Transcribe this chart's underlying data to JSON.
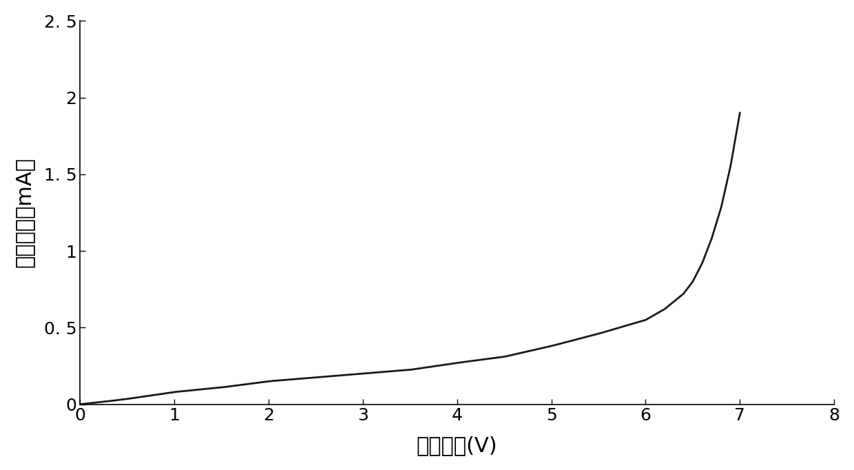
{
  "xlabel": "漏极电压(V)",
  "ylabel": "漏极电流（mA）",
  "xlim": [
    0,
    8
  ],
  "ylim": [
    0,
    2.5
  ],
  "xticks": [
    0,
    1,
    2,
    3,
    4,
    5,
    6,
    7,
    8
  ],
  "yticks": [
    0,
    0.5,
    1.0,
    1.5,
    2.0,
    2.5
  ],
  "ytick_labels": [
    "0",
    "0. 5",
    "1",
    "1. 5",
    "2",
    "2. 5"
  ],
  "xtick_labels": [
    "0",
    "1",
    "2",
    "3",
    "4",
    "5",
    "6",
    "7",
    "8"
  ],
  "line_color": "#1a1a1a",
  "line_width": 2.0,
  "background_color": "#ffffff",
  "font_size_label": 22,
  "font_size_tick": 18,
  "vpts": [
    0,
    0.3,
    0.5,
    1.0,
    1.5,
    2.0,
    2.5,
    3.0,
    3.5,
    4.0,
    4.5,
    5.0,
    5.5,
    6.0,
    6.2,
    6.4,
    6.5,
    6.6,
    6.7,
    6.8,
    6.9,
    7.0
  ],
  "ipts": [
    0,
    0.02,
    0.035,
    0.08,
    0.11,
    0.15,
    0.175,
    0.2,
    0.225,
    0.27,
    0.31,
    0.38,
    0.46,
    0.55,
    0.62,
    0.72,
    0.8,
    0.92,
    1.08,
    1.28,
    1.55,
    1.9
  ]
}
